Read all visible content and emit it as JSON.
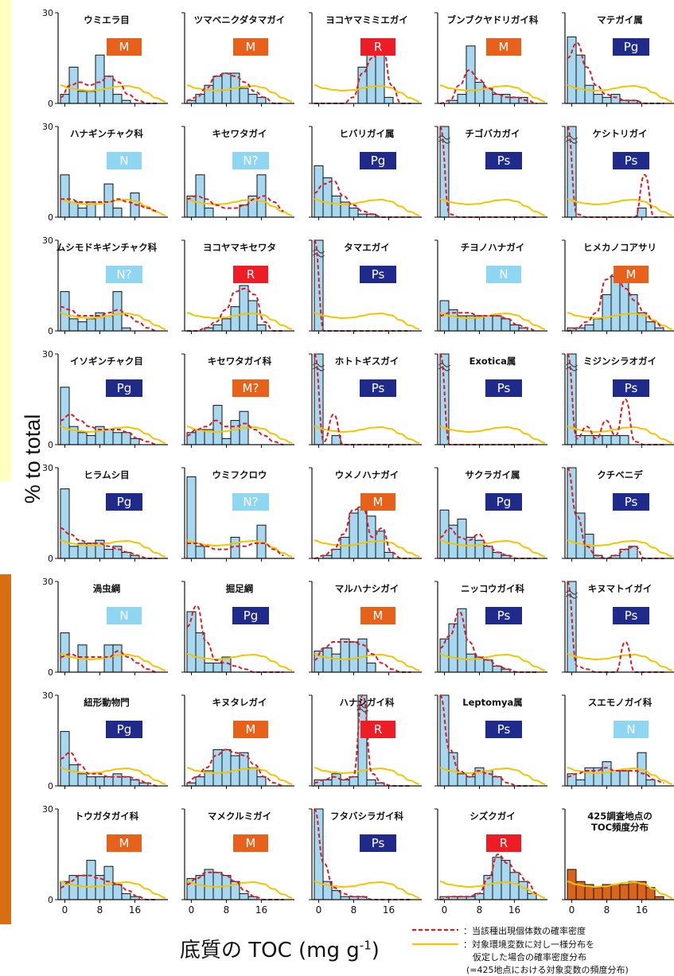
{
  "figure": {
    "ylabel": "% to total",
    "xlabel_main": "底質の TOC (mg g",
    "xlabel_sup": "-1",
    "xlabel_close": ")",
    "legend": {
      "red_line": "：当該種出現個体数の確率密度",
      "yellow_line_1": "：対象環境変数に対し一様分布を",
      "yellow_line_2": "仮定した場合の確率密度分布",
      "yellow_line_3": "(=425地点における対象変数の頻度分布)"
    },
    "x_ticks": [
      "0",
      "8",
      "16"
    ],
    "y_ticks": [
      "0",
      "30"
    ],
    "colors": {
      "bar": "#a8d8f0",
      "bar_final": "#d9641c",
      "red": "#e11a22",
      "yellow": "#f5c400",
      "M": "#e8611a",
      "R": "#ee1c25",
      "Pg": "#1f2a8a",
      "Ps": "#1f2a8a",
      "N": "#8fd6f2"
    }
  },
  "chart_data": [
    {
      "type": "bar",
      "title": "ウミエラ目",
      "badge": "M",
      "values": [
        3,
        12,
        4,
        4,
        16,
        9,
        3,
        1,
        0,
        0,
        0,
        0
      ],
      "red": [
        2,
        6,
        7,
        6,
        7,
        9,
        7,
        3,
        1,
        0,
        0
      ],
      "break": false
    },
    {
      "type": "bar",
      "title": "ツマベニクダタマガイ",
      "badge": "M",
      "values": [
        1,
        3,
        6,
        9,
        10,
        10,
        5,
        3,
        2,
        0,
        0,
        0
      ],
      "red": [
        1,
        2,
        5,
        9,
        10,
        9,
        7,
        4,
        2,
        0,
        0
      ],
      "break": false
    },
    {
      "type": "bar",
      "title": "ヨコヤマミミエガイ",
      "badge": "R",
      "values": [
        0,
        0,
        0,
        0,
        0,
        12,
        16,
        20,
        2,
        0,
        0,
        0
      ],
      "red": [
        0,
        0,
        0,
        0,
        2,
        10,
        15,
        20,
        6,
        0,
        0
      ],
      "break": false
    },
    {
      "type": "bar",
      "title": "ブンブクヤドリガイ科",
      "badge": "M",
      "values": [
        0,
        1,
        3,
        19,
        7,
        5,
        3,
        3,
        2,
        2,
        0,
        0
      ],
      "red": [
        0,
        1,
        6,
        11,
        8,
        5,
        3,
        2,
        2,
        1,
        0
      ],
      "break": false
    },
    {
      "type": "bar",
      "title": "マテガイ属",
      "badge": "Pg",
      "values": [
        22,
        16,
        6,
        3,
        2,
        3,
        1,
        1,
        0,
        0,
        0,
        0
      ],
      "red": [
        15,
        20,
        12,
        6,
        3,
        2,
        1,
        1,
        0,
        0,
        0
      ],
      "break": false
    },
    {
      "type": "bar",
      "title": "ハナギンチャク科",
      "badge": "N",
      "values": [
        14,
        5,
        3,
        5,
        0,
        11,
        3,
        0,
        8,
        0,
        0,
        0
      ],
      "red": [
        6,
        6,
        5,
        5,
        5,
        5,
        6,
        5,
        4,
        3,
        2
      ],
      "break": false
    },
    {
      "type": "bar",
      "title": "キセワタガイ",
      "badge": "N?",
      "values": [
        7,
        14,
        3,
        0,
        0,
        0,
        4,
        7,
        14,
        0,
        0,
        0
      ],
      "red": [
        6,
        7,
        6,
        4,
        3,
        3,
        4,
        6,
        7,
        5,
        2
      ],
      "break": false
    },
    {
      "type": "bar",
      "title": "ヒバリガイ属",
      "badge": "Pg",
      "values": [
        17,
        13,
        7,
        5,
        3,
        1,
        1,
        0,
        0,
        0,
        0,
        0
      ],
      "red": [
        8,
        11,
        12,
        7,
        4,
        2,
        1,
        0,
        0,
        0,
        0
      ],
      "break": false
    },
    {
      "type": "bar",
      "title": "チゴバカガイ",
      "badge": "Ps",
      "values": [
        30,
        0,
        0,
        0,
        0,
        0,
        0,
        0,
        0,
        0,
        0,
        0
      ],
      "red": [
        30,
        1,
        0,
        0,
        0,
        0,
        0,
        0,
        0,
        0,
        0
      ],
      "break": true
    },
    {
      "type": "bar",
      "title": "ケシトリガイ",
      "badge": "Ps",
      "values": [
        30,
        0,
        0,
        0,
        0,
        0,
        0,
        0,
        3,
        0,
        0,
        0
      ],
      "red": [
        30,
        1,
        0,
        0,
        0,
        0,
        0,
        0,
        14,
        0,
        0
      ],
      "break": true
    },
    {
      "type": "bar",
      "title": "ムシモドキギンチャク科",
      "badge": "N?",
      "values": [
        13,
        4,
        3,
        4,
        6,
        5,
        13,
        1,
        0,
        0,
        0,
        0
      ],
      "red": [
        8,
        7,
        5,
        5,
        5,
        6,
        7,
        5,
        3,
        1,
        0
      ],
      "break": false
    },
    {
      "type": "bar",
      "title": "ヨコヤマキセワタ",
      "badge": "R",
      "values": [
        0,
        0,
        1,
        2,
        4,
        8,
        15,
        10,
        2,
        0,
        0,
        0
      ],
      "red": [
        0,
        0,
        1,
        3,
        7,
        13,
        14,
        12,
        3,
        0,
        0
      ],
      "break": false
    },
    {
      "type": "bar",
      "title": "タマエガイ",
      "badge": "Ps",
      "values": [
        30,
        0,
        0,
        0,
        0,
        0,
        0,
        0,
        0,
        0,
        0,
        0
      ],
      "red": [
        30,
        0,
        0,
        0,
        0,
        0,
        0,
        0,
        0,
        0,
        0
      ],
      "break": true
    },
    {
      "type": "bar",
      "title": "チヨノハナガイ",
      "badge": "N",
      "values": [
        10,
        7,
        5,
        5,
        5,
        5,
        5,
        4,
        2,
        1,
        0,
        0
      ],
      "red": [
        5,
        6,
        6,
        6,
        5,
        5,
        5,
        4,
        2,
        1,
        0
      ],
      "break": false
    },
    {
      "type": "bar",
      "title": "ヒメカノコアサリ",
      "badge": "M",
      "values": [
        1,
        1,
        2,
        4,
        12,
        18,
        20,
        12,
        6,
        3,
        1,
        0
      ],
      "red": [
        0,
        1,
        3,
        6,
        17,
        19,
        14,
        10,
        6,
        3,
        1
      ],
      "break": false
    },
    {
      "type": "bar",
      "title": "イソギンチャク目",
      "badge": "Pg",
      "values": [
        19,
        6,
        4,
        3,
        6,
        5,
        4,
        4,
        2,
        0,
        0,
        0
      ],
      "red": [
        8,
        10,
        8,
        6,
        5,
        5,
        5,
        4,
        2,
        1,
        0
      ],
      "break": false
    },
    {
      "type": "bar",
      "title": "キセワタガイ科",
      "badge": "M?",
      "values": [
        4,
        5,
        5,
        13,
        2,
        8,
        11,
        0,
        0,
        0,
        0,
        0
      ],
      "red": [
        3,
        5,
        6,
        8,
        6,
        6,
        7,
        5,
        3,
        1,
        0
      ],
      "break": false
    },
    {
      "type": "bar",
      "title": "ホトトギスガイ",
      "badge": "Ps",
      "values": [
        30,
        0,
        3,
        0,
        0,
        0,
        0,
        0,
        0,
        0,
        0,
        0
      ],
      "red": [
        30,
        1,
        10,
        0,
        0,
        0,
        0,
        0,
        0,
        0,
        0
      ],
      "break": true
    },
    {
      "type": "bar",
      "title": "Exotica属",
      "badge": "Ps",
      "values": [
        30,
        0,
        0,
        0,
        0,
        0,
        0,
        0,
        0,
        0,
        0,
        0
      ],
      "red": [
        30,
        0,
        0,
        0,
        0,
        0,
        0,
        0,
        0,
        0,
        0
      ],
      "break": true
    },
    {
      "type": "bar",
      "title": "ミジンシラオガイ",
      "badge": "Ps",
      "values": [
        30,
        3,
        3,
        3,
        3,
        3,
        3,
        0,
        0,
        0,
        0,
        0
      ],
      "red": [
        30,
        2,
        6,
        2,
        8,
        3,
        15,
        1,
        0,
        0,
        0
      ],
      "break": true
    },
    {
      "type": "bar",
      "title": "ヒラムシ目",
      "badge": "Pg",
      "values": [
        23,
        4,
        5,
        5,
        6,
        3,
        4,
        2,
        1,
        0,
        0,
        0
      ],
      "red": [
        10,
        8,
        6,
        5,
        5,
        4,
        3,
        2,
        1,
        0,
        0
      ],
      "break": false
    },
    {
      "type": "bar",
      "title": "ウミフクロウ",
      "badge": "N?",
      "values": [
        27,
        4,
        0,
        0,
        0,
        7,
        0,
        0,
        11,
        0,
        0,
        0
      ],
      "red": [
        5,
        5,
        4,
        3,
        3,
        4,
        4,
        5,
        5,
        3,
        1
      ],
      "break": false
    },
    {
      "type": "bar",
      "title": "ウメノハナガイ",
      "badge": "M",
      "values": [
        0,
        1,
        3,
        7,
        15,
        17,
        14,
        9,
        2,
        0,
        0,
        0
      ],
      "red": [
        0,
        1,
        3,
        8,
        16,
        17,
        7,
        10,
        2,
        0,
        0
      ],
      "break": false
    },
    {
      "type": "bar",
      "title": "サクラガイ属",
      "badge": "Pg",
      "values": [
        16,
        11,
        13,
        7,
        6,
        4,
        2,
        1,
        0,
        0,
        0,
        0
      ],
      "red": [
        7,
        10,
        7,
        6,
        8,
        4,
        2,
        1,
        0,
        0,
        0
      ],
      "break": false
    },
    {
      "type": "bar",
      "title": "クチベニデ",
      "badge": "Ps",
      "values": [
        30,
        15,
        8,
        1,
        0,
        1,
        3,
        4,
        0,
        0,
        0,
        0
      ],
      "red": [
        30,
        14,
        4,
        1,
        0,
        1,
        3,
        4,
        0,
        0,
        0
      ],
      "break": false
    },
    {
      "type": "bar",
      "title": "渦虫綱",
      "badge": "N",
      "values": [
        13,
        0,
        9,
        0,
        0,
        9,
        9,
        0,
        0,
        0,
        0,
        0
      ],
      "red": [
        5,
        6,
        5,
        5,
        5,
        5,
        7,
        5,
        3,
        1,
        0
      ],
      "break": false
    },
    {
      "type": "bar",
      "title": "掘足綱",
      "badge": "Pg",
      "values": [
        20,
        13,
        3,
        3,
        5,
        0,
        0,
        0,
        0,
        0,
        0,
        0
      ],
      "red": [
        15,
        22,
        10,
        4,
        3,
        2,
        1,
        0,
        0,
        0,
        0
      ],
      "break": false
    },
    {
      "type": "bar",
      "title": "マルハナシガイ",
      "badge": "M",
      "values": [
        7,
        8,
        6,
        11,
        10,
        11,
        3,
        0,
        0,
        0,
        0,
        0
      ],
      "red": [
        4,
        8,
        10,
        10,
        10,
        9,
        6,
        3,
        1,
        0,
        0
      ],
      "break": false
    },
    {
      "type": "bar",
      "title": "ニッコウガイ科",
      "badge": "Ps",
      "values": [
        11,
        16,
        21,
        6,
        5,
        4,
        2,
        1,
        0,
        0,
        0,
        0
      ],
      "red": [
        8,
        12,
        20,
        10,
        5,
        4,
        2,
        1,
        0,
        0,
        0
      ],
      "break": false
    },
    {
      "type": "bar",
      "title": "キヌマトイガイ",
      "badge": "Ps",
      "values": [
        30,
        0,
        0,
        0,
        0,
        0,
        0,
        0,
        0,
        0,
        0,
        0
      ],
      "red": [
        30,
        2,
        1,
        0,
        0,
        0,
        10,
        0,
        0,
        0,
        0
      ],
      "break": true
    },
    {
      "type": "bar",
      "title": "紐形動物門",
      "badge": "Pg",
      "values": [
        18,
        7,
        4,
        3,
        3,
        3,
        4,
        3,
        2,
        1,
        0,
        0
      ],
      "red": [
        9,
        11,
        7,
        4,
        4,
        3,
        3,
        3,
        2,
        1,
        0
      ],
      "break": false
    },
    {
      "type": "bar",
      "title": "キヌタレガイ",
      "badge": "M",
      "values": [
        1,
        3,
        5,
        12,
        12,
        10,
        11,
        6,
        3,
        0,
        0,
        0
      ],
      "red": [
        1,
        3,
        6,
        10,
        12,
        11,
        10,
        7,
        3,
        1,
        0
      ],
      "break": false
    },
    {
      "type": "bar",
      "title": "ハナシガイ科",
      "badge": "R",
      "values": [
        2,
        2,
        4,
        2,
        3,
        30,
        2,
        1,
        0,
        0,
        0,
        0
      ],
      "red": [
        1,
        2,
        3,
        2,
        3,
        30,
        4,
        1,
        0,
        0,
        0
      ],
      "break": true
    },
    {
      "type": "bar",
      "title": "Leptomya属",
      "badge": "Ps",
      "values": [
        30,
        11,
        4,
        3,
        6,
        5,
        3,
        0,
        0,
        0,
        0,
        0
      ],
      "red": [
        30,
        12,
        5,
        3,
        5,
        4,
        3,
        1,
        0,
        0,
        0
      ],
      "break": false
    },
    {
      "type": "bar",
      "title": "スエモノガイ科",
      "badge": "N",
      "values": [
        4,
        2,
        6,
        6,
        8,
        5,
        5,
        0,
        11,
        2,
        0,
        0
      ],
      "red": [
        3,
        4,
        5,
        5,
        6,
        5,
        5,
        5,
        4,
        2,
        1
      ],
      "break": false
    },
    {
      "type": "bar",
      "title": "トウガタガイ科",
      "badge": "M",
      "values": [
        6,
        8,
        8,
        13,
        8,
        11,
        5,
        2,
        1,
        0,
        0,
        0
      ],
      "red": [
        4,
        6,
        8,
        8,
        7,
        6,
        5,
        3,
        1,
        0,
        0
      ],
      "break": false
    },
    {
      "type": "bar",
      "title": "マメクルミガイ",
      "badge": "M",
      "values": [
        7,
        8,
        10,
        9,
        8,
        6,
        2,
        1,
        0,
        0,
        0,
        0
      ],
      "red": [
        5,
        7,
        9,
        9,
        8,
        6,
        3,
        1,
        0,
        0,
        0
      ],
      "break": false
    },
    {
      "type": "bar",
      "title": "フタバシラガイ科",
      "badge": "Ps",
      "values": [
        30,
        6,
        3,
        1,
        1,
        1,
        0,
        0,
        0,
        0,
        0,
        0
      ],
      "red": [
        30,
        12,
        4,
        2,
        1,
        1,
        0,
        0,
        0,
        0,
        0
      ],
      "break": false
    },
    {
      "type": "bar",
      "title": "シズクガイ",
      "badge": "R",
      "values": [
        1,
        1,
        1,
        1,
        2,
        8,
        14,
        13,
        9,
        6,
        2,
        0
      ],
      "red": [
        0,
        1,
        1,
        1,
        2,
        7,
        15,
        12,
        9,
        6,
        2
      ],
      "break": false
    },
    {
      "type": "bar",
      "title": "425調査地点の\nTOC頻度分布",
      "badge": "",
      "values": [
        10,
        6,
        5,
        4,
        5,
        5,
        5,
        6,
        6,
        4,
        1,
        0
      ],
      "red": [],
      "break": false
    }
  ],
  "yellow_curve": [
    6,
    5,
    4.5,
    4.2,
    4.4,
    5,
    5.6,
    5.8,
    5.2,
    3.6,
    1.8,
    0.6
  ]
}
